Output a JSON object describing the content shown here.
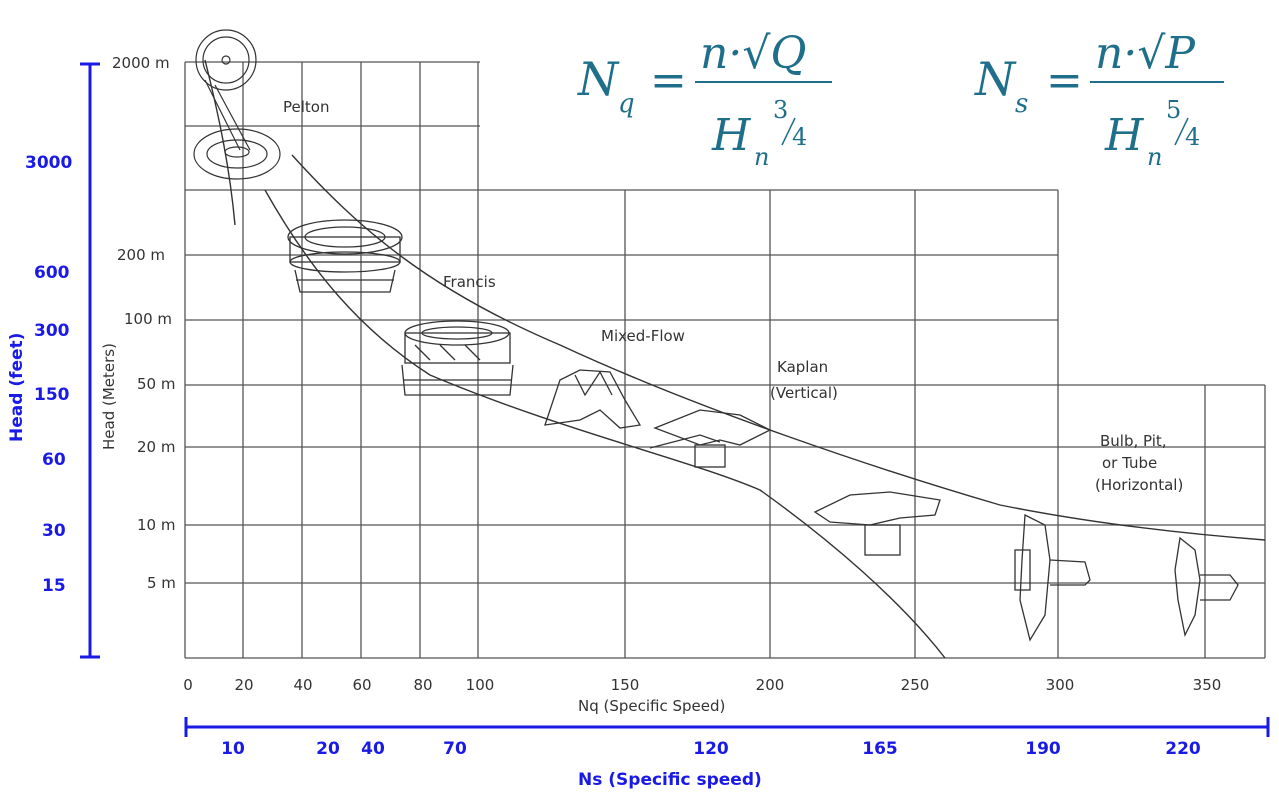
{
  "formulas": {
    "nq": {
      "lhs_main": "N",
      "lhs_sub": "q",
      "numer": "n·√Q",
      "denom_main": "H",
      "denom_sub": "n",
      "denom_exp_num": "3",
      "denom_exp_den": "4"
    },
    "ns": {
      "lhs_main": "N",
      "lhs_sub": "s",
      "numer": "n·√P",
      "denom_main": "H",
      "denom_sub": "n",
      "denom_exp_num": "5",
      "denom_exp_den": "4"
    }
  },
  "chart": {
    "y_head_ticks": [
      "2000 m",
      "200 m",
      "100 m",
      "50 m",
      "20 m",
      "10 m",
      "5 m"
    ],
    "y_axis_label": "Head (Meters)",
    "x_nq_ticks": [
      "0",
      "20",
      "40",
      "60",
      "80",
      "100",
      "150",
      "200",
      "250",
      "300",
      "350"
    ],
    "x_axis_label": "Nq (Specific Speed)",
    "regions": {
      "pelton": "Pelton",
      "francis": "Francis",
      "mixed": "Mixed-Flow",
      "kaplan_1": "Kaplan",
      "kaplan_2": "(Vertical)",
      "bulb_1": "Bulb, Pit,",
      "bulb_2": "or Tube",
      "bulb_3": "(Horizontal)"
    }
  },
  "left_axis": {
    "title": "Head (feet)",
    "ticks": [
      "3000",
      "600",
      "300",
      "150",
      "60",
      "30",
      "15"
    ]
  },
  "bottom_axis": {
    "title": "Ns (Specific speed)",
    "ticks": [
      "10",
      "20",
      "40",
      "70",
      "120",
      "165",
      "190",
      "220"
    ]
  },
  "colors": {
    "axis_blue": "#1a1ae6",
    "formula": "#1f6f8b",
    "grid": "#555555"
  }
}
